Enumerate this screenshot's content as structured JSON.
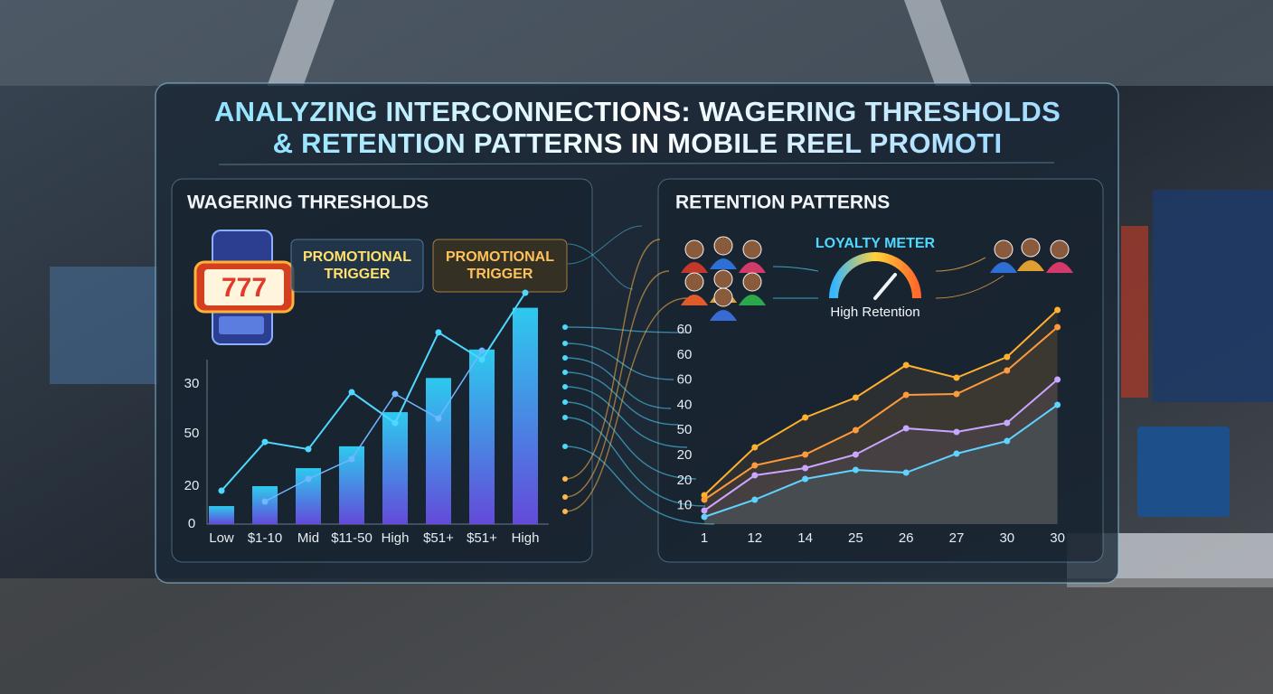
{
  "header": {
    "title_lines": [
      "ANALYZING INTERCONNECTIONS: WAGERING THRESHOLDS",
      "& RETENTION PATTERNS IN MOBILE REEL PROMOTI"
    ]
  },
  "wagering": {
    "heading": "WAGERING THRESHOLDS",
    "triggers": [
      [
        "PROMOTIONAL",
        "TRIGGER"
      ],
      [
        "PROMOTIONAL",
        "TRIGGER"
      ]
    ],
    "y_labels": [
      30,
      50,
      20,
      0
    ],
    "categories": [
      "Low",
      "$1-10",
      "Mid",
      "$11-50",
      "High",
      "$51+",
      "$51+",
      "High"
    ],
    "bars": [
      9.5,
      20,
      29.5,
      41,
      59,
      77,
      92,
      114
    ],
    "line_upper": [
      17.6,
      43.3,
      39.5,
      69.5,
      53.3,
      101,
      86.7,
      121.9
    ],
    "line_lower": [
      null,
      11.9,
      23.8,
      34.3,
      68.6,
      55.7,
      91.4,
      null
    ]
  },
  "retention": {
    "heading": "RETENTION PATTERNS",
    "meter": {
      "title": "LOYALTY METER",
      "label": "High Retention"
    },
    "y_labels": [
      60,
      60,
      60,
      40,
      50,
      20,
      20,
      10
    ],
    "x_labels": [
      1,
      12,
      14,
      25,
      26,
      27,
      30,
      30
    ],
    "series": [
      {
        "color": "#ffb02e",
        "values": [
          16,
          42.5,
          59,
          70,
          88,
          81,
          92.5,
          118.5
        ]
      },
      {
        "color": "#ff9a3c",
        "values": [
          13.5,
          32.5,
          38.5,
          52,
          71.5,
          72,
          85,
          109
        ]
      },
      {
        "color": "#c9a6ff",
        "values": [
          7.5,
          27,
          31,
          38.5,
          53,
          51,
          56,
          80
        ]
      },
      {
        "color": "#5fd3ff",
        "values": [
          4,
          13.5,
          25,
          30,
          28.5,
          39,
          46,
          66
        ]
      }
    ]
  }
}
